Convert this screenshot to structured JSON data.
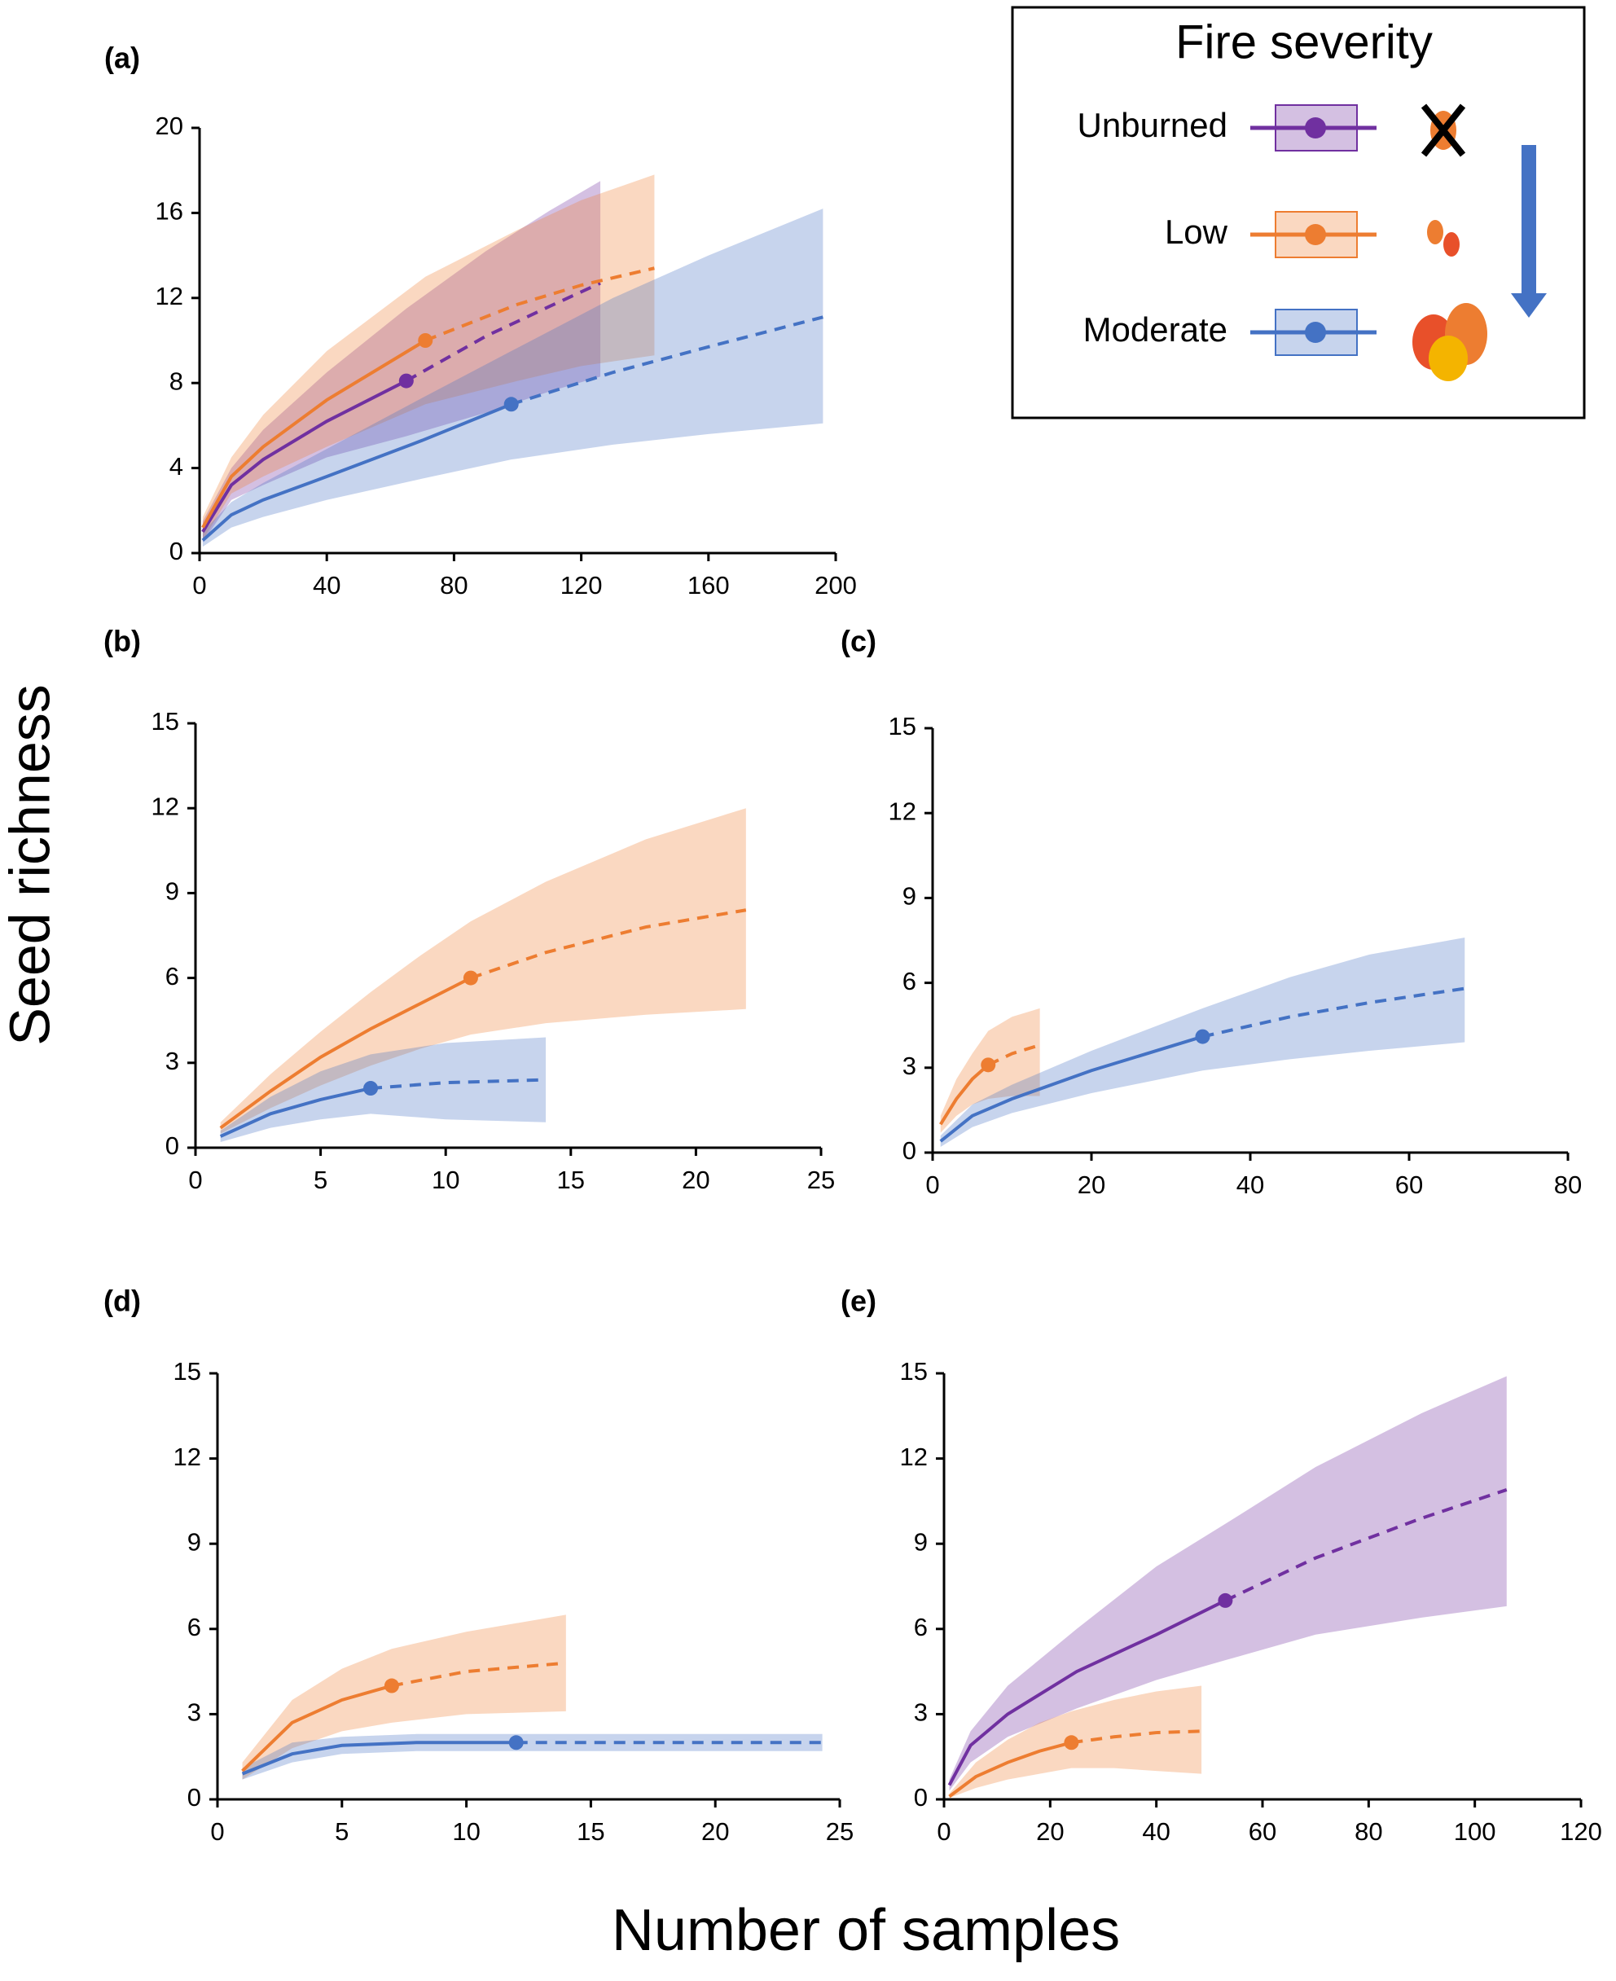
{
  "figure": {
    "y_label": "Seed richness",
    "x_label": "Number of samples",
    "legend": {
      "title": "Fire severity",
      "entries": [
        {
          "name": "Unburned",
          "color": "#7030a0"
        },
        {
          "name": "Low",
          "color": "#ed7d31"
        },
        {
          "name": "Moderate",
          "color": "#4472c4"
        }
      ]
    }
  },
  "chart_data": [
    {
      "type": "line",
      "label": "(a)",
      "xlim": [
        0,
        200
      ],
      "xticks": [
        0,
        40,
        80,
        120,
        160,
        200
      ],
      "ylim": [
        0,
        20
      ],
      "yticks": [
        0,
        4,
        8,
        12,
        16,
        20
      ],
      "series": [
        {
          "name": "Unburned",
          "observed": 65,
          "x": [
            1,
            10,
            20,
            40,
            65,
            90,
            110,
            126
          ],
          "values": [
            1,
            3.2,
            4.4,
            6.2,
            8.1,
            10.2,
            11.6,
            12.7
          ],
          "upper": [
            1.5,
            4,
            5.8,
            8.5,
            11.5,
            14.2,
            16.1,
            17.5
          ],
          "lower": [
            0.5,
            2.5,
            3.2,
            4.5,
            5.5,
            6.6,
            7.6,
            8.3
          ]
        },
        {
          "name": "Low",
          "observed": 71,
          "x": [
            1,
            10,
            20,
            40,
            71,
            100,
            120,
            143
          ],
          "values": [
            1.2,
            3.6,
            5,
            7.2,
            10,
            11.7,
            12.6,
            13.4
          ],
          "upper": [
            1.7,
            4.5,
            6.5,
            9.5,
            13,
            15.2,
            16.6,
            17.8
          ],
          "lower": [
            0.6,
            2.8,
            3.6,
            5,
            7,
            8.1,
            8.8,
            9.3
          ]
        },
        {
          "name": "Moderate",
          "observed": 98,
          "x": [
            1,
            10,
            20,
            40,
            70,
            98,
            130,
            160,
            196
          ],
          "values": [
            0.6,
            1.8,
            2.5,
            3.6,
            5.3,
            7.0,
            8.5,
            9.7,
            11.1
          ],
          "upper": [
            1.0,
            2.4,
            3.3,
            4.9,
            7.3,
            9.5,
            12,
            14,
            16.2
          ],
          "lower": [
            0.3,
            1.2,
            1.7,
            2.5,
            3.5,
            4.4,
            5.1,
            5.6,
            6.1
          ]
        }
      ]
    },
    {
      "type": "line",
      "label": "(b)",
      "xlim": [
        0,
        25
      ],
      "xticks": [
        0,
        5,
        10,
        15,
        20,
        25
      ],
      "ylim": [
        0,
        15
      ],
      "yticks": [
        0,
        3,
        6,
        9,
        12,
        15
      ],
      "series": [
        {
          "name": "Low",
          "observed": 11,
          "x": [
            1,
            3,
            5,
            7,
            9,
            11,
            14,
            18,
            22
          ],
          "values": [
            0.7,
            2.0,
            3.2,
            4.2,
            5.1,
            6.0,
            6.9,
            7.8,
            8.4
          ],
          "upper": [
            0.9,
            2.6,
            4.1,
            5.5,
            6.8,
            8.0,
            9.4,
            10.9,
            12
          ],
          "lower": [
            0.5,
            1.4,
            2.2,
            2.9,
            3.5,
            4.0,
            4.4,
            4.7,
            4.9
          ]
        },
        {
          "name": "Moderate",
          "observed": 7,
          "x": [
            1,
            3,
            5,
            7,
            10,
            14
          ],
          "values": [
            0.4,
            1.2,
            1.7,
            2.1,
            2.3,
            2.4
          ],
          "upper": [
            0.6,
            1.8,
            2.7,
            3.3,
            3.7,
            3.9
          ],
          "lower": [
            0.2,
            0.7,
            1.0,
            1.2,
            1.0,
            0.9
          ]
        }
      ]
    },
    {
      "type": "line",
      "label": "(c)",
      "xlim": [
        0,
        80
      ],
      "xticks": [
        0,
        20,
        40,
        60,
        80
      ],
      "ylim": [
        0,
        15
      ],
      "yticks": [
        0,
        3,
        6,
        9,
        12,
        15
      ],
      "series": [
        {
          "name": "Low",
          "observed": 7,
          "x": [
            1,
            3,
            5,
            7,
            10,
            13.5
          ],
          "values": [
            1.0,
            1.9,
            2.6,
            3.1,
            3.5,
            3.8
          ],
          "upper": [
            1.3,
            2.6,
            3.5,
            4.3,
            4.8,
            5.1
          ],
          "lower": [
            0.7,
            1.3,
            1.7,
            1.9,
            2.0,
            2.0
          ]
        },
        {
          "name": "Moderate",
          "observed": 34,
          "x": [
            1,
            5,
            10,
            20,
            34,
            45,
            55,
            67
          ],
          "values": [
            0.4,
            1.3,
            1.9,
            2.9,
            4.1,
            4.8,
            5.3,
            5.8
          ],
          "upper": [
            0.6,
            1.7,
            2.4,
            3.6,
            5.1,
            6.2,
            7.0,
            7.6
          ],
          "lower": [
            0.2,
            0.9,
            1.4,
            2.1,
            2.9,
            3.3,
            3.6,
            3.9
          ]
        }
      ]
    },
    {
      "type": "line",
      "label": "(d)",
      "xlim": [
        0,
        25
      ],
      "xticks": [
        0,
        5,
        10,
        15,
        20,
        25
      ],
      "ylim": [
        0,
        15
      ],
      "yticks": [
        0,
        3,
        6,
        9,
        12,
        15
      ],
      "series": [
        {
          "name": "Low",
          "observed": 7,
          "x": [
            1,
            3,
            5,
            7,
            10,
            14
          ],
          "values": [
            1.0,
            2.7,
            3.5,
            4.0,
            4.5,
            4.8
          ],
          "upper": [
            1.3,
            3.5,
            4.6,
            5.3,
            5.9,
            6.5
          ],
          "lower": [
            0.7,
            1.8,
            2.4,
            2.7,
            3.0,
            3.1
          ]
        },
        {
          "name": "Moderate",
          "observed": 12,
          "x": [
            1,
            3,
            5,
            8,
            12,
            18,
            24.3
          ],
          "values": [
            0.9,
            1.6,
            1.9,
            2.0,
            2.0,
            2.0,
            2.0
          ],
          "upper": [
            1.1,
            2.0,
            2.2,
            2.3,
            2.3,
            2.3,
            2.3
          ],
          "lower": [
            0.7,
            1.3,
            1.6,
            1.7,
            1.7,
            1.7,
            1.7
          ]
        }
      ]
    },
    {
      "type": "line",
      "label": "(e)",
      "xlim": [
        0,
        120
      ],
      "xticks": [
        0,
        20,
        40,
        60,
        80,
        100,
        120
      ],
      "ylim": [
        0,
        15
      ],
      "yticks": [
        0,
        3,
        6,
        9,
        12,
        15
      ],
      "series": [
        {
          "name": "Unburned",
          "observed": 53,
          "x": [
            1,
            5,
            12,
            25,
            40,
            53,
            70,
            90,
            106
          ],
          "values": [
            0.5,
            1.9,
            3.0,
            4.5,
            5.8,
            7.0,
            8.5,
            9.9,
            10.9
          ],
          "upper": [
            0.7,
            2.4,
            4.0,
            6.0,
            8.2,
            9.7,
            11.7,
            13.6,
            14.9
          ],
          "lower": [
            0.3,
            1.3,
            2.2,
            3.2,
            4.2,
            4.9,
            5.8,
            6.4,
            6.8
          ]
        },
        {
          "name": "Low",
          "observed": 24,
          "x": [
            1,
            6,
            12,
            18,
            24,
            32,
            40,
            48.5
          ],
          "values": [
            0.1,
            0.8,
            1.3,
            1.7,
            2.0,
            2.2,
            2.35,
            2.4
          ],
          "upper": [
            0.2,
            1.3,
            2.1,
            2.7,
            3.1,
            3.5,
            3.8,
            4.0
          ],
          "lower": [
            0.05,
            0.4,
            0.7,
            0.9,
            1.1,
            1.1,
            1.0,
            0.9
          ]
        }
      ]
    }
  ]
}
